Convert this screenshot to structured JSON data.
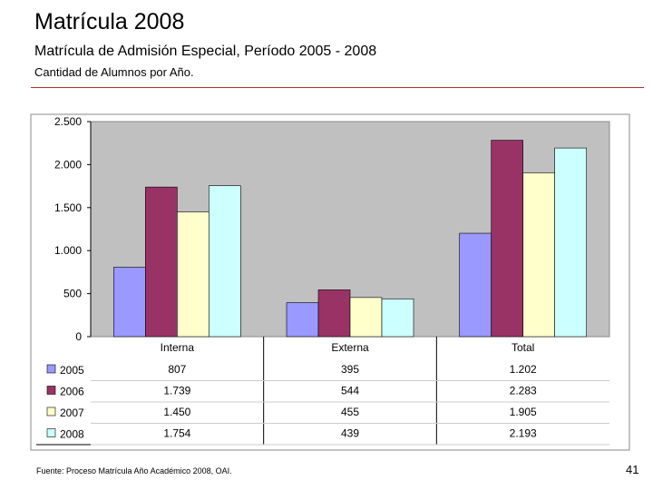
{
  "slide": {
    "title": "Matrícula 2008",
    "subtitle": "Matrícula de Admisión Especial, Período 2005 - 2008",
    "caption": "Cantidad de Alumnos por Año.",
    "footer": "Fuente: Proceso Matrícula Año Académico 2008, OAI.",
    "page_number": "41"
  },
  "chart_data": {
    "type": "bar",
    "title": "",
    "xlabel": "",
    "ylabel": "",
    "categories": [
      "Interna",
      "Externa",
      "Total"
    ],
    "ylim": [
      0,
      2500
    ],
    "yticks": [
      0,
      500,
      1000,
      1500,
      2000,
      2500
    ],
    "ytick_labels": [
      "0",
      "500",
      "1.000",
      "1.500",
      "2.000",
      "2.500"
    ],
    "grid": false,
    "plot_background": "#c0c0c0",
    "series": [
      {
        "name": "2005",
        "color": "#9999ff",
        "values": [
          807,
          395,
          1202
        ],
        "labels": [
          "807",
          "395",
          "1.202"
        ]
      },
      {
        "name": "2006",
        "color": "#993366",
        "values": [
          1739,
          544,
          2283
        ],
        "labels": [
          "1.739",
          "544",
          "2.283"
        ]
      },
      {
        "name": "2007",
        "color": "#ffffcc",
        "values": [
          1450,
          455,
          1905
        ],
        "labels": [
          "1.450",
          "455",
          "1.905"
        ]
      },
      {
        "name": "2008",
        "color": "#ccffff",
        "values": [
          1754,
          439,
          2193
        ],
        "labels": [
          "1.754",
          "439",
          "2.193"
        ]
      }
    ],
    "data_table": true,
    "legend": "data-table-left"
  }
}
